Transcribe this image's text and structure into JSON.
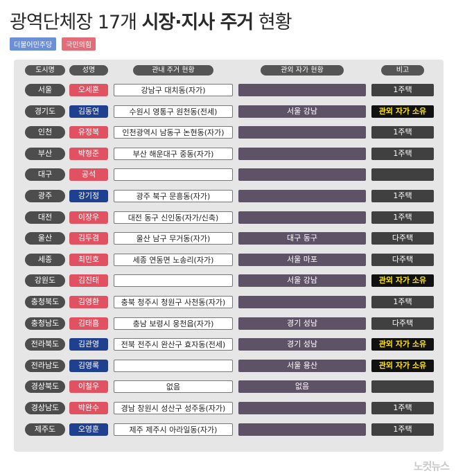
{
  "title": {
    "part1": "광역단체장 17개 ",
    "part2": "시장·지사 주거",
    "part3": " 현황"
  },
  "legend": {
    "dem": "더불어민주당",
    "ppp": "국민의힘"
  },
  "headers": {
    "region": "도시명",
    "name": "성명",
    "local": "관내 주거 현황",
    "outside": "관외 자가 현황",
    "note": "비고"
  },
  "rows": [
    {
      "region": "서울",
      "name": "오세훈",
      "party": "ppp",
      "local": "강남구 대치동(자가)",
      "outside": "",
      "note": "1주택",
      "highlight": false
    },
    {
      "region": "경기도",
      "name": "김동연",
      "party": "dem",
      "local": "수원시 영통구 원천동(전세)",
      "outside": "서울 강남",
      "note": "관외 자가 소유",
      "highlight": true
    },
    {
      "region": "인천",
      "name": "유정복",
      "party": "ppp",
      "local": "인천광역시 남동구 논현동(자가)",
      "outside": "",
      "note": "1주택",
      "highlight": false
    },
    {
      "region": "부산",
      "name": "박형준",
      "party": "ppp",
      "local": "부산 해운대구 중동(자가)",
      "outside": "",
      "note": "1주택",
      "highlight": false
    },
    {
      "region": "대구",
      "name": "공석",
      "party": "ppp",
      "local": "",
      "outside": "",
      "note": "",
      "highlight": false
    },
    {
      "region": "광주",
      "name": "강기정",
      "party": "dem",
      "local": "광주 북구 문흥동(자가)",
      "outside": "",
      "note": "1주택",
      "highlight": false
    },
    {
      "region": "대전",
      "name": "이장우",
      "party": "ppp",
      "local": "대전 동구 신인동(자가/신축)",
      "outside": "",
      "note": "1주택",
      "highlight": false
    },
    {
      "region": "울산",
      "name": "김두겸",
      "party": "ppp",
      "local": "울산 남구 무거동(자가)",
      "outside": "대구 동구",
      "note": "다주택",
      "highlight": false
    },
    {
      "region": "세종",
      "name": "최민호",
      "party": "ppp",
      "local": "세종 연동면 노송리(자가)",
      "outside": "서울 마포",
      "note": "다주택",
      "highlight": false
    },
    {
      "region": "강원도",
      "name": "김진태",
      "party": "ppp",
      "local": "",
      "outside": "서울 강남",
      "note": "관외 자가 소유",
      "highlight": true
    },
    {
      "region": "충청북도",
      "name": "김영환",
      "party": "ppp",
      "local": "충북 청주시 청원구 사천동(자가)",
      "outside": "",
      "note": "1주택",
      "highlight": false
    },
    {
      "region": "충청남도",
      "name": "김태흠",
      "party": "ppp",
      "local": "충남 보령시 웅천읍(자가)",
      "outside": "경기 성남",
      "note": "다주택",
      "highlight": false
    },
    {
      "region": "전라북도",
      "name": "김관영",
      "party": "dem",
      "local": "전북 전주시 완산구 효자동(전세)",
      "outside": "경기 성남",
      "note": "관외 자가 소유",
      "highlight": true
    },
    {
      "region": "전라남도",
      "name": "김영록",
      "party": "dem",
      "local": "",
      "outside": "서울 용산",
      "note": "관외 자가 소유",
      "highlight": true
    },
    {
      "region": "경상북도",
      "name": "이철우",
      "party": "ppp",
      "local": "없음",
      "outside": "없음",
      "note": "",
      "highlight": false
    },
    {
      "region": "경상남도",
      "name": "박완수",
      "party": "ppp",
      "local": "경남 창원시 성산구 성주동(자가)",
      "outside": "",
      "note": "1주택",
      "highlight": false
    },
    {
      "region": "제주도",
      "name": "오영훈",
      "party": "dem",
      "local": "제주 제주시 아라일동(자가)",
      "outside": "",
      "note": "1주택",
      "highlight": false
    }
  ],
  "watermark": "노컷뉴스"
}
